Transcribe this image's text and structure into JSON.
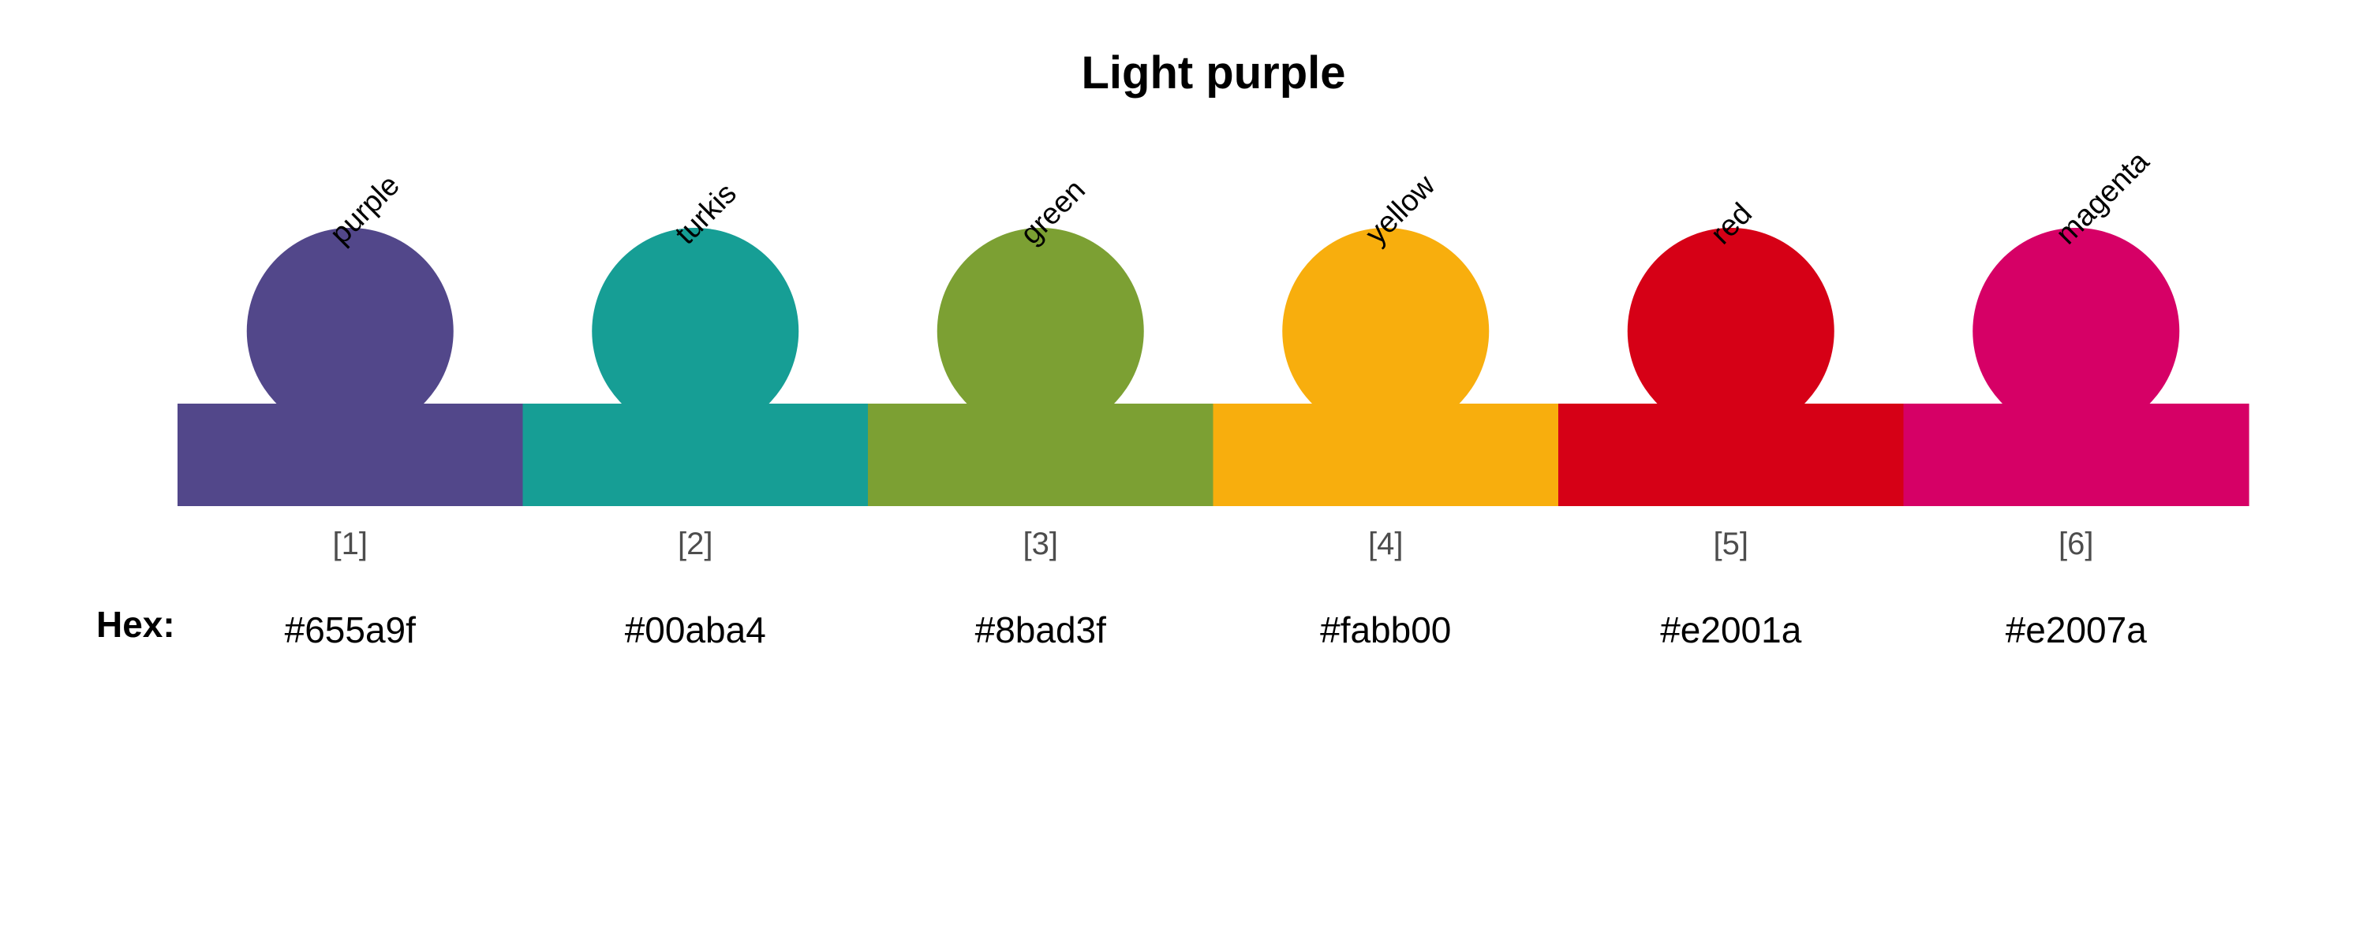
{
  "chart_data": {
    "type": "palette",
    "title": "Light purple",
    "hex_label": "Hex:",
    "swatches": [
      {
        "name": "purple",
        "index_label": "[1]",
        "hex": "#655a9f",
        "color": "#52478a"
      },
      {
        "name": "turkis",
        "index_label": "[2]",
        "hex": "#00aba4",
        "color": "#169e95"
      },
      {
        "name": "green",
        "index_label": "[3]",
        "hex": "#8bad3f",
        "color": "#7ca033"
      },
      {
        "name": "yellow",
        "index_label": "[4]",
        "hex": "#fabb00",
        "color": "#f8ae0d"
      },
      {
        "name": "red",
        "index_label": "[5]",
        "hex": "#e2001a",
        "color": "#d60016"
      },
      {
        "name": "magenta",
        "index_label": "[6]",
        "hex": "#e2007a",
        "color": "#d60066"
      }
    ]
  }
}
